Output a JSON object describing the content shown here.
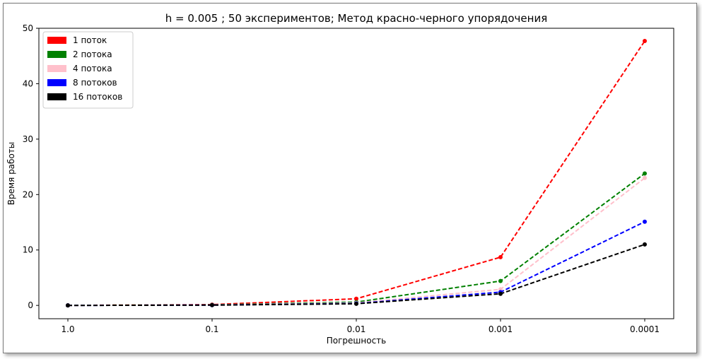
{
  "chart_data": {
    "type": "line",
    "title": "h = 0.005 ; 50 экспериментов; Метод красно-черного упорядочения",
    "xlabel": "Погрешность",
    "ylabel": "Время работы",
    "categories": [
      "1.0",
      "0.1",
      "0.01",
      "0.001",
      "0.0001"
    ],
    "ylim": [
      -2.4,
      50
    ],
    "yticks": [
      0,
      10,
      20,
      30,
      40,
      50
    ],
    "legend_position": "top-left",
    "grid": false,
    "line_style": "dashed",
    "series": [
      {
        "name": "1 поток",
        "color": "#ff0000",
        "values": [
          0.0,
          0.15,
          1.2,
          8.7,
          47.7
        ]
      },
      {
        "name": "2 потока",
        "color": "#008000",
        "values": [
          0.0,
          0.1,
          0.6,
          4.4,
          23.8
        ]
      },
      {
        "name": "4 потока",
        "color": "#ffc0cb",
        "values": [
          0.0,
          0.08,
          0.45,
          2.9,
          23.0
        ]
      },
      {
        "name": "8 потоков",
        "color": "#0000ff",
        "values": [
          0.0,
          0.06,
          0.35,
          2.4,
          15.1
        ]
      },
      {
        "name": "16 потоков",
        "color": "#000000",
        "values": [
          0.0,
          0.05,
          0.3,
          2.1,
          11.0
        ]
      }
    ]
  }
}
